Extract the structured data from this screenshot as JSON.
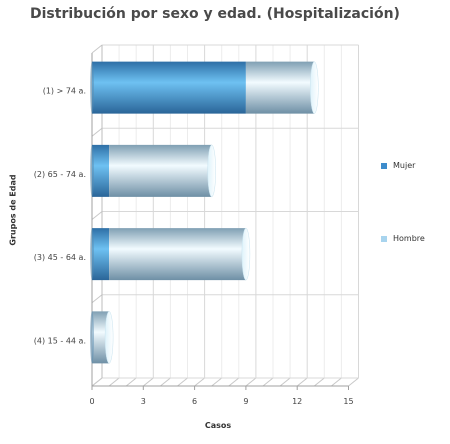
{
  "chart_data": {
    "type": "bar",
    "orientation": "horizontal",
    "title": "Distribución por sexo y edad. (Hospitalización)",
    "xlabel": "Casos",
    "ylabel": "Grupos de Edad",
    "categories": [
      "(1) > 74 a.",
      "(2) 65 - 74 a.",
      "(3) 45 - 64 a.",
      "(4) 15 - 44 a."
    ],
    "series": [
      {
        "name": "Mujer",
        "values": [
          9,
          1,
          1,
          0
        ],
        "color": "#3d8ccc"
      },
      {
        "name": "Hombre",
        "values": [
          4,
          6,
          8,
          1
        ],
        "color": "#a8d4ee"
      }
    ],
    "xlim": [
      0,
      15
    ],
    "xticks": [
      0,
      3,
      6,
      9,
      12,
      15
    ],
    "grid": true,
    "stacked": true,
    "legend_position": "right"
  }
}
